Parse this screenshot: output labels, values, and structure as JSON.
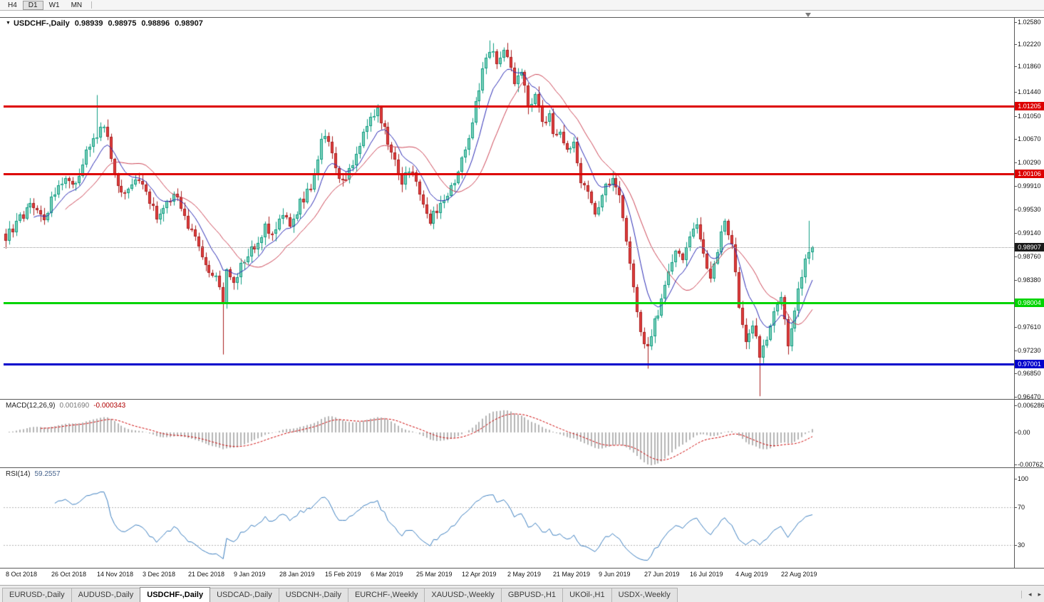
{
  "toolbar": {
    "timeframes": [
      {
        "label": "H4",
        "active": false
      },
      {
        "label": "D1",
        "active": true
      },
      {
        "label": "W1",
        "active": false
      },
      {
        "label": "MN",
        "active": false
      }
    ]
  },
  "chart_data": {
    "type": "candlestick",
    "symbol": "USDCHF-",
    "timeframe": "Daily",
    "title": "USDCHF-,Daily",
    "ohlc": {
      "open": "0.98939",
      "high": "0.98975",
      "low": "0.98896",
      "close": "0.98907"
    },
    "price_axis": {
      "max": 1.0258,
      "min": 0.9647,
      "ticks": [
        "1.02580",
        "1.02220",
        "1.01860",
        "1.01440",
        "1.01050",
        "1.00670",
        "1.00290",
        "0.99910",
        "0.99530",
        "0.99140",
        "0.98760",
        "0.98380",
        "0.97610",
        "0.97230",
        "0.96850",
        "0.96470"
      ]
    },
    "date_axis": [
      "8 Oct 2018",
      "26 Oct 2018",
      "14 Nov 2018",
      "3 Dec 2018",
      "21 Dec 2018",
      "9 Jan 2019",
      "28 Jan 2019",
      "15 Feb 2019",
      "6 Mar 2019",
      "25 Mar 2019",
      "12 Apr 2019",
      "2 May 2019",
      "21 May 2019",
      "9 Jun 2019",
      "27 Jun 2019",
      "16 Jul 2019",
      "4 Aug 2019",
      "22 Aug 2019"
    ],
    "levels": [
      {
        "name": "resistance-1",
        "label": "1.01205",
        "value": 1.01205,
        "color": "#dd0000"
      },
      {
        "name": "resistance-2",
        "label": "1.00106",
        "value": 1.00106,
        "color": "#dd0000"
      },
      {
        "name": "support-1",
        "label": "0.98004",
        "value": 0.98004,
        "color": "#00d400"
      },
      {
        "name": "support-2",
        "label": "0.97001",
        "value": 0.97001,
        "color": "#0000cc"
      }
    ],
    "current_price": {
      "label": "0.98907",
      "value": 0.98907
    },
    "moving_averages": [
      {
        "type": "EMA",
        "period": 9,
        "color": "#2a2ab4"
      },
      {
        "type": "SMA",
        "period": 18,
        "color": "#cc4455"
      }
    ],
    "colors": {
      "up_fill": "#7fd0ba",
      "up_stroke": "#0e9d82",
      "down_fill": "#e23d3d",
      "down_stroke": "#a81d1d"
    },
    "candles": {
      "count": 231,
      "wiggle": 0.0009,
      "anchors": [
        [
          0,
          0.991
        ],
        [
          4,
          0.9938
        ],
        [
          8,
          0.9962
        ],
        [
          11,
          0.9941
        ],
        [
          14,
          0.9985
        ],
        [
          17,
          1.0012
        ],
        [
          20,
          0.9988
        ],
        [
          23,
          1.0042
        ],
        [
          26,
          1.0078
        ],
        [
          28,
          1.0088
        ],
        [
          31,
          1.0012
        ],
        [
          34,
          0.9972
        ],
        [
          37,
          1.0002
        ],
        [
          40,
          0.9986
        ],
        [
          43,
          0.9932
        ],
        [
          46,
          0.9968
        ],
        [
          49,
          0.9974
        ],
        [
          52,
          0.9921
        ],
        [
          55,
          0.9893
        ],
        [
          58,
          0.9857
        ],
        [
          61,
          0.9832
        ],
        [
          62,
          0.9795
        ],
        [
          63,
          0.9852
        ],
        [
          65,
          0.9838
        ],
        [
          68,
          0.9872
        ],
        [
          71,
          0.9895
        ],
        [
          74,
          0.9922
        ],
        [
          76,
          0.9908
        ],
        [
          78,
          0.9945
        ],
        [
          81,
          0.9928
        ],
        [
          84,
          0.9962
        ],
        [
          87,
          0.999
        ],
        [
          89,
          1.0042
        ],
        [
          91,
          1.0078
        ],
        [
          93,
          1.0045
        ],
        [
          95,
          1.0008
        ],
        [
          97,
          0.9998
        ],
        [
          100,
          1.0048
        ],
        [
          103,
          1.0092
        ],
        [
          106,
          1.0116
        ],
        [
          107,
          1.0098
        ],
        [
          110,
          1.0042
        ],
        [
          113,
          0.9998
        ],
        [
          116,
          1.0022
        ],
        [
          119,
          0.9962
        ],
        [
          121,
          0.9932
        ],
        [
          124,
          0.9966
        ],
        [
          127,
          0.999
        ],
        [
          130,
          1.0028
        ],
        [
          132,
          1.0068
        ],
        [
          134,
          1.0128
        ],
        [
          136,
          1.0178
        ],
        [
          138,
          1.0216
        ],
        [
          140,
          1.0188
        ],
        [
          142,
          1.0208
        ],
        [
          143,
          1.0196
        ],
        [
          145,
          1.0156
        ],
        [
          147,
          1.0178
        ],
        [
          149,
          1.0122
        ],
        [
          151,
          1.0142
        ],
        [
          153,
          1.0088
        ],
        [
          155,
          1.0102
        ],
        [
          156,
          1.0072
        ],
        [
          158,
          1.0086
        ],
        [
          160,
          1.0042
        ],
        [
          162,
          1.0056
        ],
        [
          164,
          1.0002
        ],
        [
          166,
          0.9986
        ],
        [
          168,
          0.9952
        ],
        [
          169,
          0.9958
        ],
        [
          171,
          0.9986
        ],
        [
          173,
          1.0004
        ],
        [
          175,
          0.9976
        ],
        [
          177,
          0.9902
        ],
        [
          179,
          0.9822
        ],
        [
          181,
          0.9756
        ],
        [
          183,
          0.9722
        ],
        [
          185,
          0.9766
        ],
        [
          187,
          0.9806
        ],
        [
          189,
          0.9856
        ],
        [
          191,
          0.9886
        ],
        [
          193,
          0.9862
        ],
        [
          195,
          0.9906
        ],
        [
          197,
          0.9932
        ],
        [
          199,
          0.9882
        ],
        [
          201,
          0.9846
        ],
        [
          203,
          0.9886
        ],
        [
          205,
          0.9942
        ],
        [
          207,
          0.9892
        ],
        [
          209,
          0.9792
        ],
        [
          211,
          0.9742
        ],
        [
          213,
          0.9772
        ],
        [
          215,
          0.9716
        ],
        [
          217,
          0.9746
        ],
        [
          219,
          0.9786
        ],
        [
          221,
          0.9816
        ],
        [
          222,
          0.9768
        ],
        [
          223,
          0.9736
        ],
        [
          224,
          0.9762
        ],
        [
          226,
          0.9816
        ],
        [
          228,
          0.9872
        ],
        [
          229,
          0.9886
        ],
        [
          230,
          0.98907
        ]
      ],
      "spikes": [
        {
          "i": 26,
          "high": 1.0139
        },
        {
          "i": 62,
          "low": 0.9716
        },
        {
          "i": 106,
          "high": 1.0124
        },
        {
          "i": 138,
          "high": 1.0228
        },
        {
          "i": 183,
          "low": 0.9693
        },
        {
          "i": 215,
          "low": 0.9648
        },
        {
          "i": 223,
          "low": 0.9716
        },
        {
          "i": 229,
          "high": 0.9934
        }
      ]
    }
  },
  "macd": {
    "label": "MACD(12,26,9)",
    "value_main": "0.001690",
    "value_signal": "-0.000343",
    "fast": 12,
    "slow": 26,
    "signal": 9,
    "axis_ticks": [
      "0.006286",
      "0.00",
      "-0.00762"
    ],
    "colors": {
      "histogram": "#b4b4b4",
      "signal": "#cc0000"
    }
  },
  "rsi": {
    "label": "RSI(14)",
    "value": "59.2557",
    "period": 14,
    "axis_ticks": [
      "100",
      "70",
      "30"
    ],
    "levels": [
      70,
      30
    ],
    "color": "#3b7ebf"
  },
  "tabs": {
    "items": [
      "EURUSD-,Daily",
      "AUDUSD-,Daily",
      "USDCHF-,Daily",
      "USDCAD-,Daily",
      "USDCNH-,Daily",
      "EURCHF-,Weekly",
      "XAUUSD-,Weekly",
      "GBPUSD-,H1",
      "UKOil-,H1",
      "USDX-,Weekly"
    ],
    "active_index": 2
  }
}
